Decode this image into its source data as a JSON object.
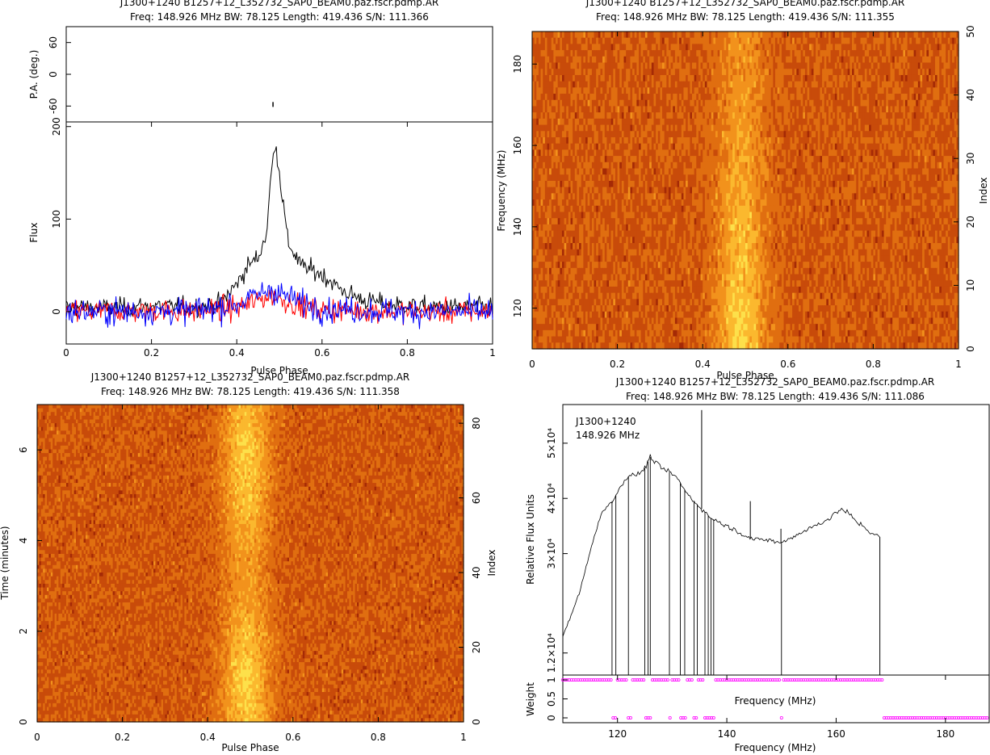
{
  "chart_data": [
    {
      "type": "line",
      "title": "J1300+1240  B1257+12_L352732_SAP0_BEAM0.paz.fscr.pdmp.AR",
      "subtitle": "Freq: 148.926 MHz BW: 78.125 Length: 419.436 S/N: 111.366",
      "xlabel": "Pulse Phase",
      "ylabel": "Flux",
      "xlim": [
        0,
        1
      ],
      "ylim": [
        -35,
        205
      ],
      "xticks": [
        "0",
        "0.2",
        "0.4",
        "0.6",
        "0.8",
        "1"
      ],
      "yticks": [
        "0",
        "100",
        "200"
      ],
      "pa_panel": {
        "ylabel": "P.A. (deg.)",
        "ylim": [
          -90,
          90
        ],
        "yticks": [
          "-60",
          "0",
          "60"
        ],
        "points": [
          {
            "x": 0.485,
            "y": -57
          }
        ]
      },
      "series": [
        {
          "color": "#000000",
          "x": [
            0,
            0.1,
            0.2,
            0.3,
            0.36,
            0.4,
            0.43,
            0.45,
            0.47,
            0.48,
            0.49,
            0.5,
            0.52,
            0.55,
            0.6,
            0.65,
            0.7,
            0.8,
            0.9,
            1.0
          ],
          "values": [
            5,
            4,
            6,
            5,
            8,
            30,
            52,
            58,
            85,
            145,
            185,
            150,
            75,
            50,
            40,
            22,
            12,
            6,
            5,
            5
          ]
        },
        {
          "color": "#ff0000",
          "x": [
            0,
            0.2,
            0.3,
            0.4,
            0.45,
            0.48,
            0.5,
            0.55,
            0.6,
            0.8,
            1.0
          ],
          "values": [
            0,
            1,
            0,
            4,
            12,
            18,
            14,
            6,
            2,
            0,
            0
          ]
        },
        {
          "color": "#0000ff",
          "x": [
            0,
            0.2,
            0.3,
            0.4,
            0.45,
            0.48,
            0.5,
            0.55,
            0.6,
            0.8,
            1.0
          ],
          "values": [
            0,
            0,
            1,
            8,
            18,
            25,
            20,
            10,
            3,
            0,
            0
          ]
        }
      ]
    },
    {
      "type": "heatmap",
      "title": "J1300+1240  B1257+12_L352732_SAP0_BEAM0.paz.fscr.pdmp.AR",
      "subtitle": "Freq: 148.926 MHz BW: 78.125 Length: 419.436 S/N: 111.355",
      "xlabel": "Pulse Phase",
      "ylabel": "Frequency (MHz)",
      "y2label": "Index",
      "xlim": [
        0,
        1
      ],
      "ylim": [
        110,
        188
      ],
      "y2lim": [
        0,
        50
      ],
      "xticks": [
        "0",
        "0.2",
        "0.4",
        "0.6",
        "0.8",
        "1"
      ],
      "yticks": [
        "120",
        "140",
        "160",
        "180"
      ],
      "y2ticks": [
        "0",
        "10",
        "20",
        "30",
        "40",
        "50"
      ],
      "rows": 51,
      "cols": 200,
      "peak_phase": 0.49,
      "peak_width": 0.04,
      "signal_profile": [
        0.15,
        0.3,
        0.5,
        0.7,
        0.85,
        0.95,
        1.0,
        1.0,
        0.95,
        0.85,
        0.6,
        0.4,
        0.25,
        0.12
      ],
      "colormap": [
        "#a52a06",
        "#c84b0a",
        "#e06e10",
        "#f2921c",
        "#fbb82e",
        "#fde04a"
      ]
    },
    {
      "type": "heatmap",
      "title": "J1300+1240  B1257+12_L352732_SAP0_BEAM0.paz.fscr.pdmp.AR",
      "subtitle": "Freq: 148.926 MHz BW: 78.125 Length: 419.436 S/N: 111.358",
      "xlabel": "Pulse Phase",
      "ylabel": "Time (minutes)",
      "y2label": "Index",
      "xlim": [
        0,
        1
      ],
      "ylim": [
        0,
        7
      ],
      "y2lim": [
        0,
        85
      ],
      "xticks": [
        "0",
        "0.2",
        "0.4",
        "0.6",
        "0.8",
        "1"
      ],
      "yticks": [
        "0",
        "2",
        "4",
        "6"
      ],
      "y2ticks": [
        "0",
        "20",
        "40",
        "60",
        "80"
      ],
      "rows": 85,
      "cols": 220,
      "peak_phase": 0.49,
      "peak_width": 0.04,
      "colormap": [
        "#a52a06",
        "#c84b0a",
        "#e06e10",
        "#f2921c",
        "#fbb82e",
        "#fde04a"
      ]
    },
    {
      "type": "line",
      "title": "J1300+1240  B1257+12_L352732_SAP0_BEAM0.paz.fscr.pdmp.AR",
      "subtitle": "Freq: 148.926 MHz BW: 78.125 Length: 419.436 S/N: 111.086",
      "annotation": [
        "J1300+1240",
        "148.926 MHz"
      ],
      "xlabel": "Frequency (MHz)",
      "xlabel_mid": "Frequency (MHz)",
      "ylabel": "Relative Flux Units",
      "weight_label": "Weight",
      "xlim": [
        110,
        188
      ],
      "ylim": [
        8000,
        57000
      ],
      "xticks": [
        "120",
        "140",
        "160",
        "180"
      ],
      "yticks": [
        {
          "v": 12000,
          "label": "1.2×10⁴"
        },
        {
          "v": 30000,
          "label": "3×10⁴"
        },
        {
          "v": 40000,
          "label": "4×10⁴"
        },
        {
          "v": 50000,
          "label": "5×10⁴"
        }
      ],
      "weight_ylim": [
        0,
        1
      ],
      "weight_yticks": [
        "0",
        "0.5",
        "1"
      ],
      "spectrum": {
        "x": [
          110.0,
          111,
          112,
          113,
          114,
          115,
          116,
          117,
          118,
          119,
          120,
          121,
          122,
          123,
          124,
          125,
          126,
          127,
          128,
          129,
          130,
          131,
          132,
          133,
          134,
          135,
          136,
          137,
          138,
          139,
          140,
          141,
          142,
          143,
          144,
          145,
          146,
          147,
          148,
          149,
          150,
          151,
          152,
          153,
          154,
          155,
          156,
          157,
          158,
          159,
          160,
          161,
          162,
          163,
          164,
          165,
          166,
          167,
          168
        ],
        "values": [
          15000,
          17500,
          20000,
          23000,
          26500,
          30500,
          34000,
          37000,
          38500,
          39500,
          41000,
          43000,
          44000,
          44200,
          44500,
          45500,
          47500,
          46500,
          45500,
          45000,
          44500,
          43500,
          42000,
          40500,
          39500,
          38500,
          37500,
          36500,
          36000,
          35500,
          35000,
          34500,
          34000,
          33500,
          33000,
          32500,
          32500,
          32500,
          32500,
          32000,
          32000,
          32500,
          33000,
          33500,
          34000,
          34500,
          35000,
          35500,
          36000,
          36500,
          37500,
          38000,
          37500,
          36500,
          35500,
          35000,
          34000,
          33500,
          33000
        ]
      },
      "dropouts": [
        119,
        119.7,
        122,
        125,
        125.6,
        126,
        129.5,
        131.5,
        132.3,
        134,
        134.6,
        136,
        136.6,
        137.1,
        137.6,
        150
      ],
      "spikes": [
        {
          "x": 135.4,
          "y": 56000
        },
        {
          "x": 144.3,
          "y": 39500
        },
        {
          "x": 149.9,
          "y": 34500
        }
      ],
      "flagged_ranges": [
        [
          119.0,
          120.0
        ],
        [
          122.0,
          122.5
        ],
        [
          125.0,
          126.2
        ],
        [
          129.3,
          129.8
        ],
        [
          131.5,
          132.5
        ],
        [
          133.8,
          134.8
        ],
        [
          135.8,
          137.8
        ],
        [
          150.0,
          150.4
        ],
        [
          168.5,
          188.0
        ]
      ]
    }
  ]
}
